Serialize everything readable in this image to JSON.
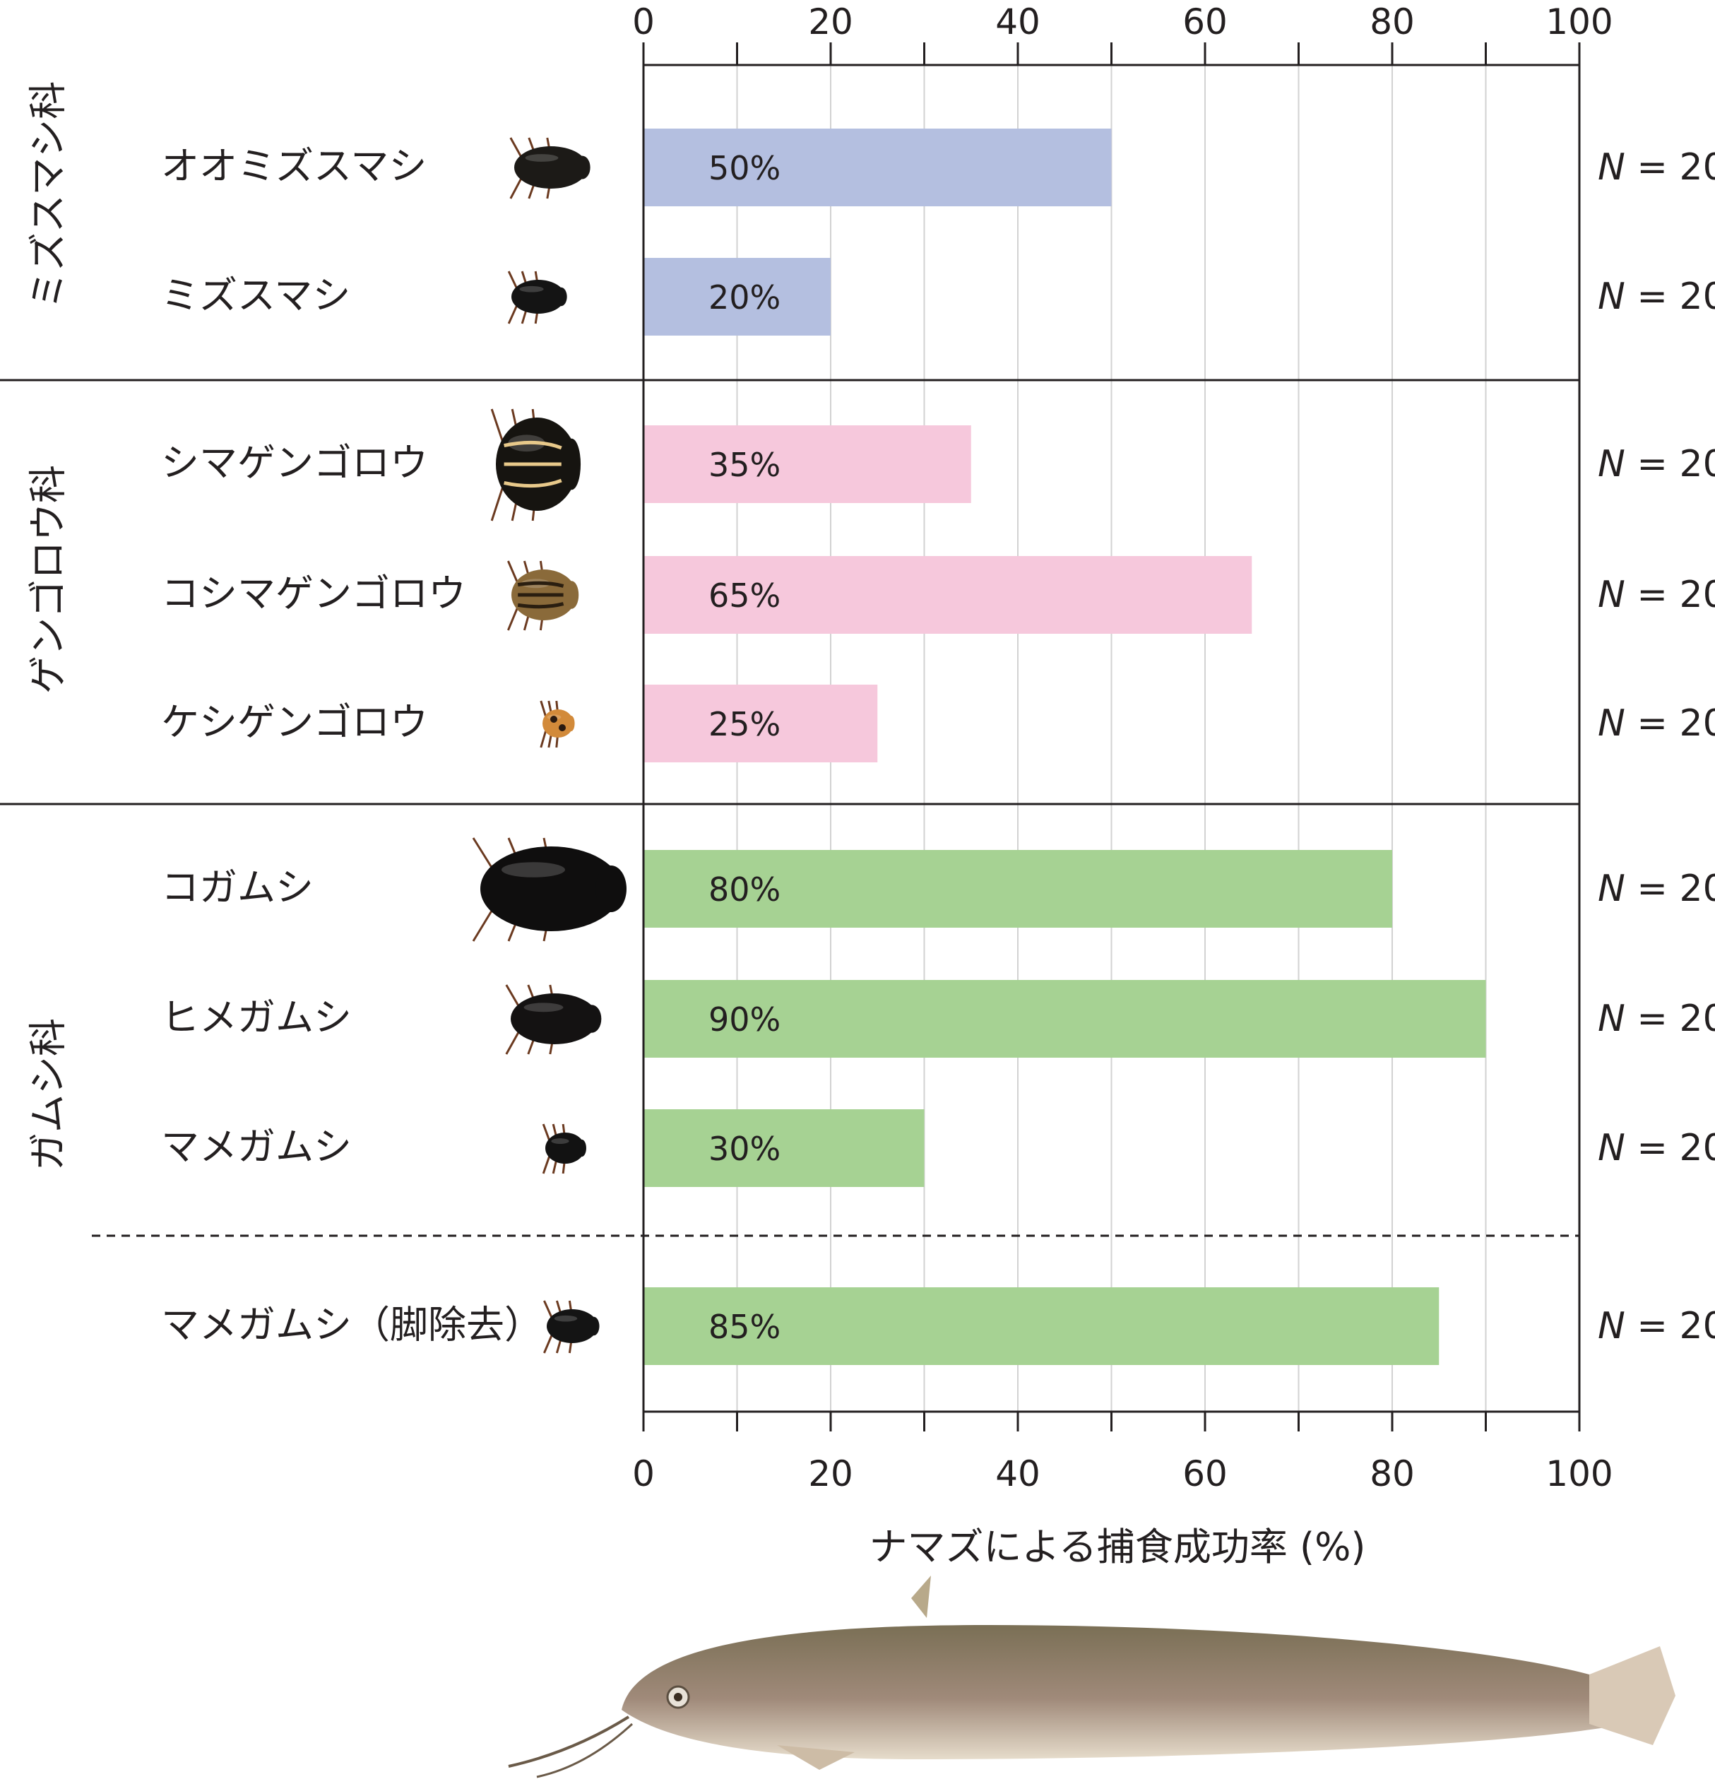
{
  "chart_data": {
    "type": "bar",
    "orientation": "horizontal",
    "xlabel": "ナマズによる捕食成功率 (%)",
    "xlim": [
      0,
      100
    ],
    "xticks": [
      "0",
      "20",
      "40",
      "60",
      "80",
      "100"
    ],
    "grid": true,
    "groups": [
      {
        "label": "ミズスマシ科",
        "color": "#b4bfe0",
        "rows": [
          {
            "species": "オオミズスマシ",
            "value": 50,
            "value_label": "50%",
            "n_label": "N = 20"
          },
          {
            "species": "ミズスマシ",
            "value": 20,
            "value_label": "20%",
            "n_label": "N = 20"
          }
        ]
      },
      {
        "label": "ゲンゴロウ科",
        "color": "#f6c8dc",
        "rows": [
          {
            "species": "シマゲンゴロウ",
            "value": 35,
            "value_label": "35%",
            "n_label": "N = 20"
          },
          {
            "species": "コシマゲンゴロウ",
            "value": 65,
            "value_label": "65%",
            "n_label": "N = 20"
          },
          {
            "species": "ケシゲンゴロウ",
            "value": 25,
            "value_label": "25%",
            "n_label": "N = 20"
          }
        ]
      },
      {
        "label": "ガムシ科",
        "color": "#a6d293",
        "rows": [
          {
            "species": "コガムシ",
            "value": 80,
            "value_label": "80%",
            "n_label": "N = 20"
          },
          {
            "species": "ヒメガムシ",
            "value": 90,
            "value_label": "90%",
            "n_label": "N = 20"
          },
          {
            "species": "マメガムシ",
            "value": 30,
            "value_label": "30%",
            "n_label": "N = 20"
          },
          {
            "species": "マメガムシ（脚除去）",
            "value": 85,
            "value_label": "85%",
            "n_label": "N = 20"
          }
        ]
      }
    ]
  },
  "illustration": {
    "beetle_icons": [
      "great-whirligig-beetle-icon",
      "whirligig-beetle-icon",
      "striped-diving-beetle-icon",
      "small-striped-diving-beetle-icon",
      "tiny-diving-beetle-icon",
      "water-scavenger-beetle-icon",
      "small-water-scavenger-beetle-icon",
      "minute-water-scavenger-beetle-icon",
      "legless-minute-water-scavenger-beetle-icon"
    ],
    "fish_icon": "catfish-icon"
  }
}
